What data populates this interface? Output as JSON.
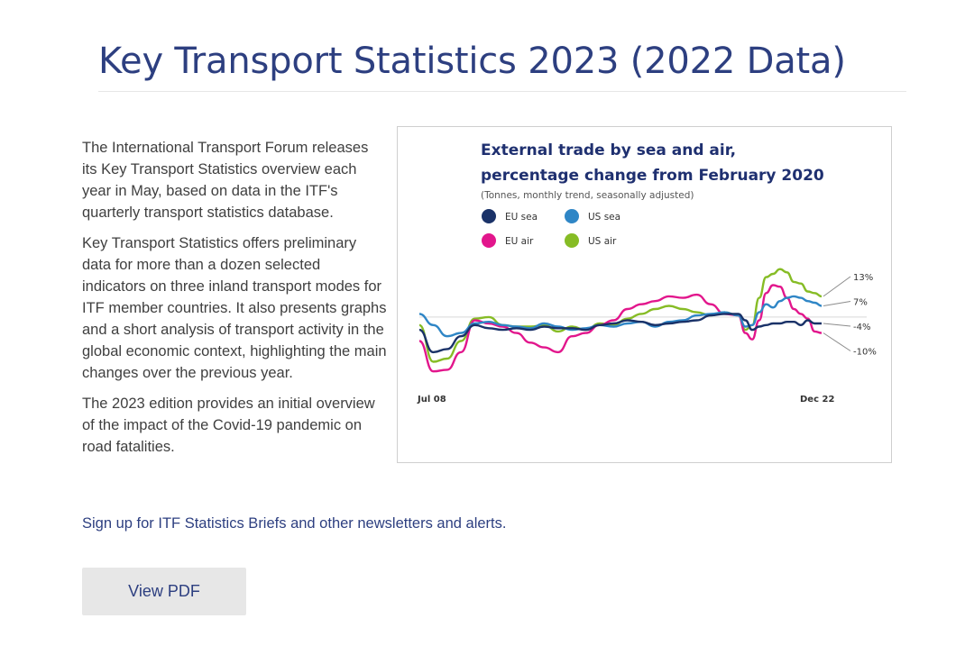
{
  "page": {
    "title": "Key Transport Statistics 2023 (2022 Data)"
  },
  "intro": {
    "paragraphs": [
      "The International Transport Forum releases its Key Transport Statistics overview each year in May, based on data in the ITF's quarterly transport statistics database.",
      "Key Transport Statistics offers preliminary data for more than a dozen selected indicators on three inland transport modes for ITF member countries. It also presents graphs and a short analysis of transport activity in the global economic context, highlighting the main changes over the previous year.",
      "The 2023 edition provides an initial overview of the impact of the Covid-19 pandemic on road fatalities."
    ],
    "signup_text": "Sign up for ITF Statistics Briefs and other newsletters and alerts."
  },
  "actions": {
    "view_pdf_label": "View PDF"
  },
  "chart_data": {
    "type": "line",
    "title_line1": "External trade by sea and air,",
    "title_line2": "percentage change from February 2020",
    "subtitle": "(Tonnes, monthly trend, seasonally adjusted)",
    "xlabel": "",
    "ylabel": "",
    "x_start_label": "Jul 08",
    "x_end_label": "Dec 22",
    "ylim": [
      -48,
      40
    ],
    "grid": false,
    "baseline": 0,
    "legend_position": "top-left",
    "x": [
      0,
      6,
      12,
      18,
      24,
      30,
      36,
      42,
      48,
      54,
      60,
      66,
      72,
      78,
      84,
      90,
      96,
      102,
      108,
      114,
      120,
      126,
      132,
      138,
      141,
      144,
      147,
      150,
      153,
      156,
      159,
      162,
      165,
      168,
      171,
      174
    ],
    "series": [
      {
        "name": "EU sea",
        "color": "#1a3268",
        "values": [
          -8,
          -22,
          -20,
          -12,
          -5,
          -7,
          -8,
          -7,
          -8,
          -6,
          -7,
          -7,
          -8,
          -5,
          -4,
          -2,
          -3,
          -5,
          -4,
          -3,
          -2,
          1,
          2,
          2,
          -2,
          -8,
          -6,
          -5,
          -4,
          -4,
          -3,
          -3,
          -5,
          -2,
          -4,
          -4
        ],
        "end_label": "-4%"
      },
      {
        "name": "US sea",
        "color": "#2f86c6",
        "values": [
          2,
          -5,
          -12,
          -10,
          -4,
          -3,
          -5,
          -6,
          -7,
          -4,
          -6,
          -8,
          -7,
          -5,
          -6,
          -4,
          -3,
          -6,
          -3,
          -2,
          1,
          2,
          3,
          1,
          -6,
          -5,
          3,
          8,
          6,
          10,
          12,
          13,
          12,
          10,
          9,
          7
        ],
        "end_label": "7%"
      },
      {
        "name": "EU air",
        "color": "#e2168c",
        "values": [
          -15,
          -34,
          -33,
          -22,
          -2,
          -4,
          -6,
          -10,
          -16,
          -19,
          -22,
          -12,
          -10,
          -5,
          -2,
          5,
          8,
          10,
          13,
          12,
          14,
          8,
          2,
          1,
          -10,
          -14,
          -2,
          15,
          20,
          19,
          12,
          5,
          2,
          -1,
          -9,
          -10
        ],
        "end_label": "-10%"
      },
      {
        "name": "US air",
        "color": "#86bc25",
        "values": [
          -5,
          -28,
          -26,
          -15,
          -1,
          0,
          -5,
          -6,
          -6,
          -5,
          -9,
          -6,
          -8,
          -4,
          -5,
          -1,
          2,
          5,
          7,
          5,
          3,
          1,
          3,
          1,
          -8,
          -5,
          12,
          25,
          27,
          30,
          28,
          22,
          21,
          16,
          15,
          13
        ],
        "end_label": "13%"
      }
    ]
  }
}
